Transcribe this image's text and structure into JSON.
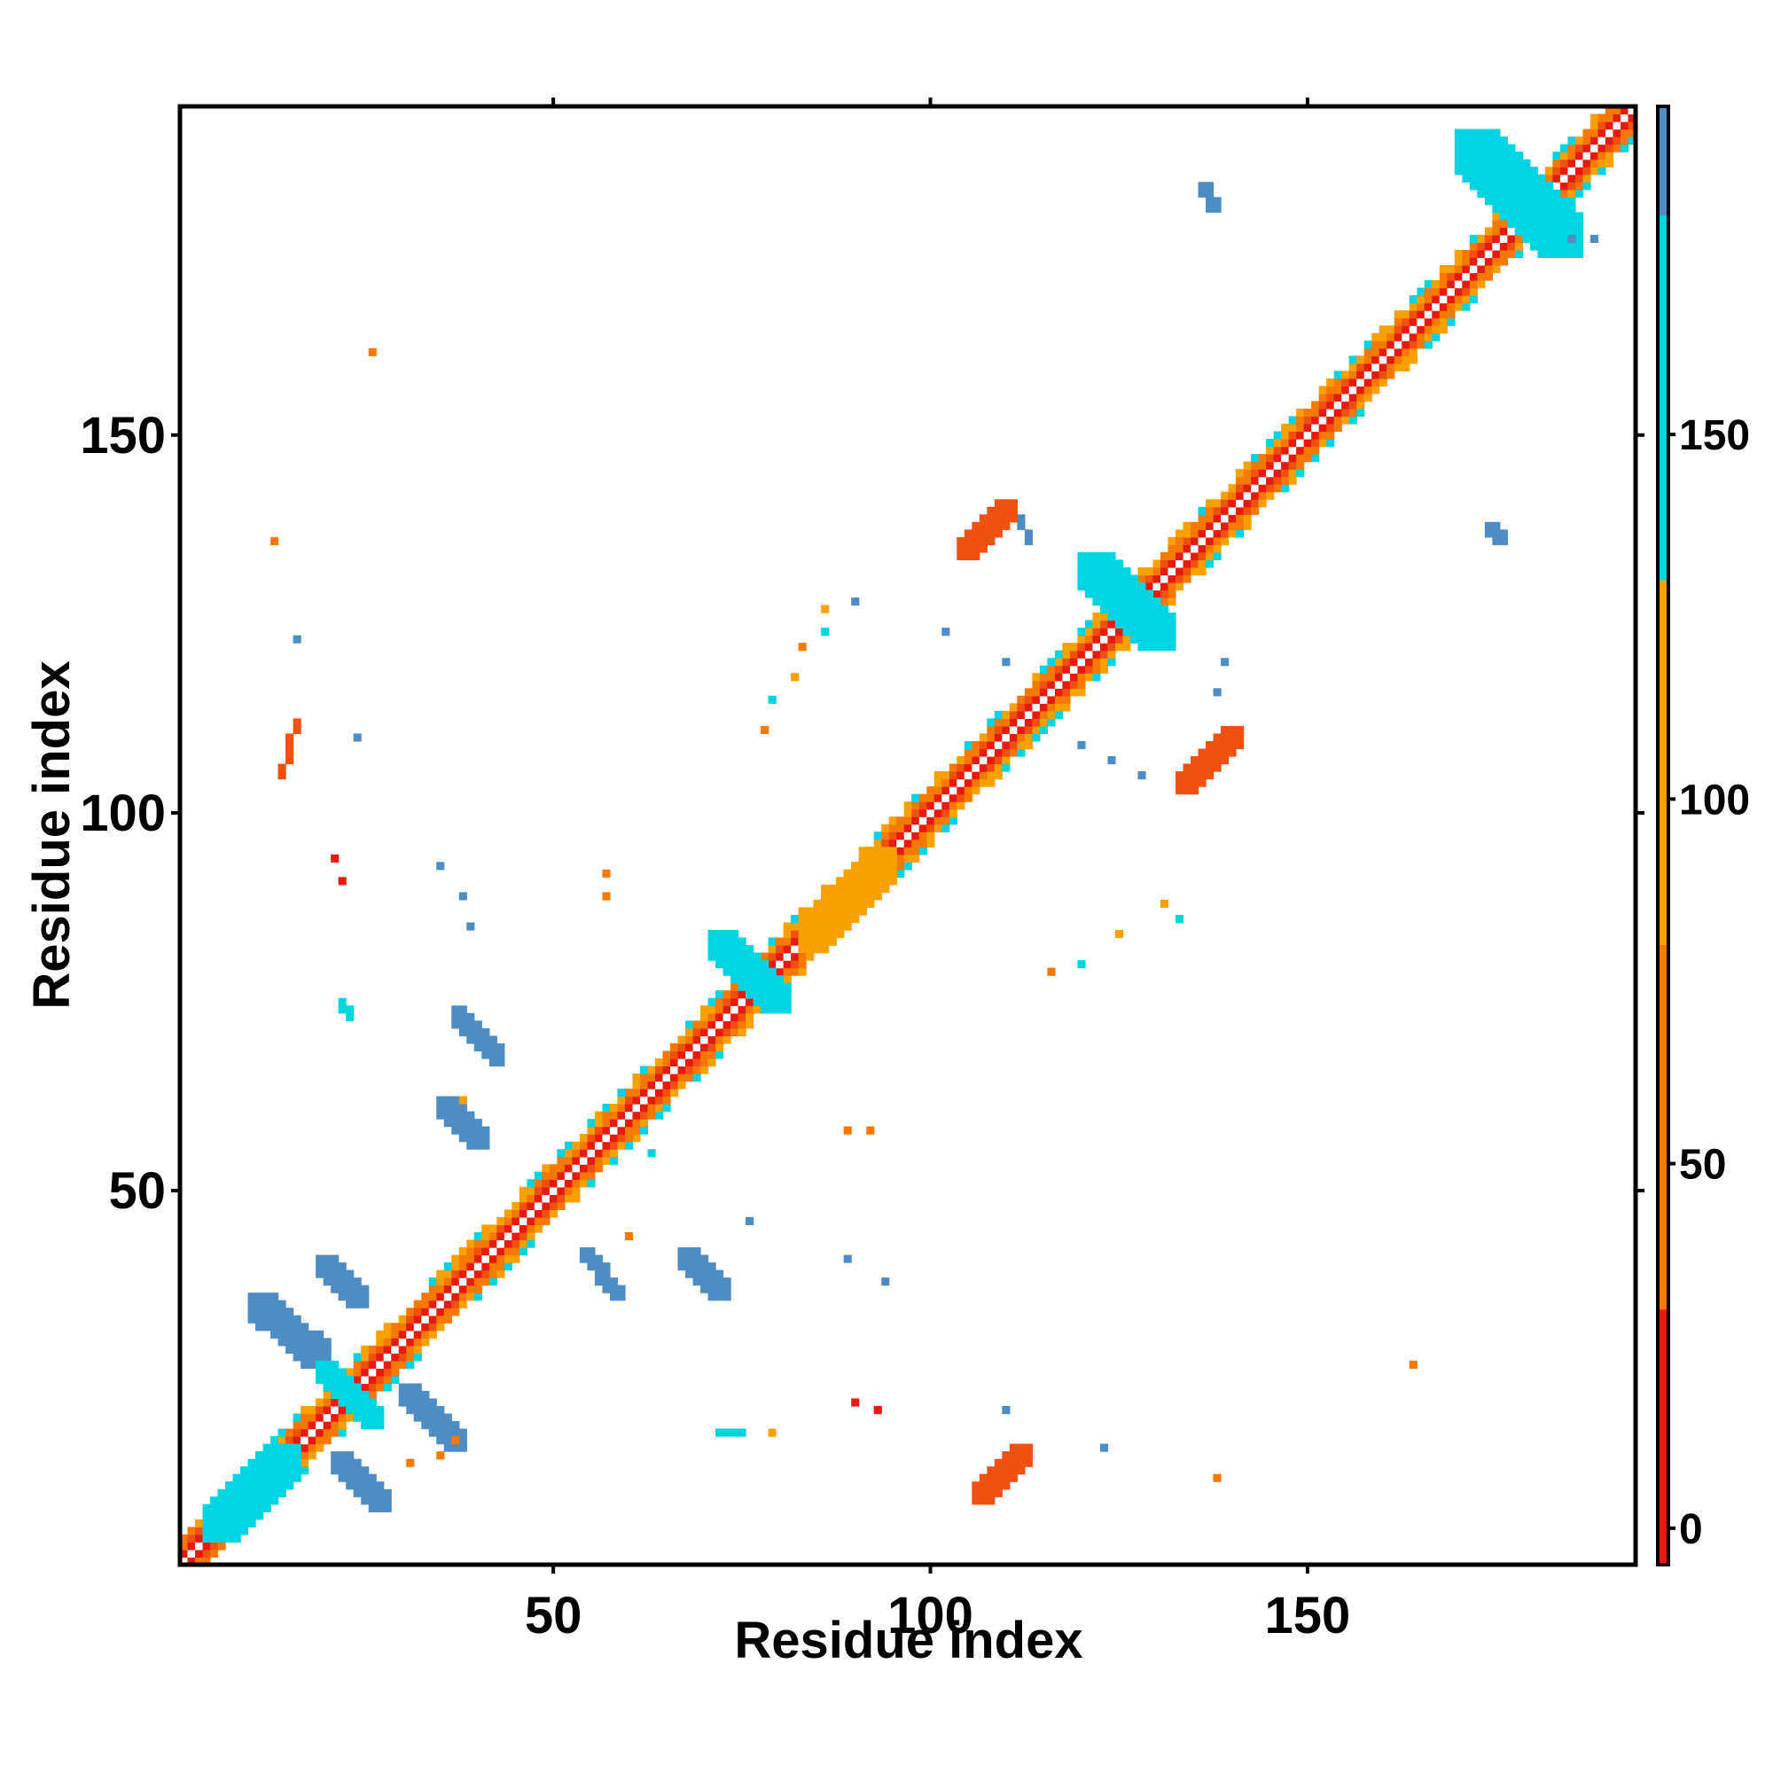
{
  "chart_data": {
    "type": "heatmap",
    "title": "",
    "xlabel": "Residue index",
    "ylabel": "Residue index",
    "xlim": [
      1,
      193
    ],
    "ylim": [
      1,
      193
    ],
    "x_ticks": [
      50,
      100,
      150
    ],
    "y_ticks": [
      50,
      100,
      150
    ],
    "grid": false,
    "legend_position": "right",
    "colorbar": {
      "ticks": [
        0,
        50,
        100,
        150
      ],
      "range": [
        -5,
        195
      ],
      "bins": [
        {
          "from": -5,
          "to": 30,
          "color": "#e8190e"
        },
        {
          "from": 30,
          "to": 80,
          "color": "#f57800"
        },
        {
          "from": 80,
          "to": 130,
          "color": "#f7a000"
        },
        {
          "from": 130,
          "to": 180,
          "color": "#00d4e0"
        },
        {
          "from": 180,
          "to": 195,
          "color": "#4d8dc4"
        }
      ]
    },
    "colors": {
      "red": "#e8190e",
      "redorange": "#f05010",
      "orange": "#f57800",
      "amber": "#f7a000",
      "cyan": "#00d4e0",
      "steel": "#4d8dc4"
    },
    "diagonal_range": [
      1,
      193
    ],
    "blobs": [
      {
        "x": [
          4,
          16
        ],
        "y": [
          4,
          16
        ],
        "color": "cyan",
        "note": "diag-band"
      },
      {
        "x": [
          10,
          20
        ],
        "y": [
          27,
          36
        ],
        "color": "steel"
      },
      {
        "x": [
          19,
          27
        ],
        "y": [
          19,
          27
        ],
        "color": "cyan"
      },
      {
        "x": [
          21,
          28
        ],
        "y": [
          8,
          15
        ],
        "color": "steel"
      },
      {
        "x": [
          30,
          38
        ],
        "y": [
          16,
          24
        ],
        "color": "steel"
      },
      {
        "x": [
          19,
          25
        ],
        "y": [
          35,
          41
        ],
        "color": "steel"
      },
      {
        "x": [
          35,
          41
        ],
        "y": [
          56,
          62
        ],
        "color": "steel"
      },
      {
        "x": [
          37,
          43
        ],
        "y": [
          67,
          74
        ],
        "color": "steel"
      },
      {
        "x": [
          54,
          59
        ],
        "y": [
          36,
          42
        ],
        "color": "steel"
      },
      {
        "x": [
          67,
          73
        ],
        "y": [
          36,
          42
        ],
        "color": "steel"
      },
      {
        "x": [
          71,
          81
        ],
        "y": [
          74,
          84
        ],
        "color": "cyan"
      },
      {
        "x": [
          83,
          95
        ],
        "y": [
          82,
          95
        ],
        "color": "amber"
      },
      {
        "x": [
          120,
          132
        ],
        "y": [
          122,
          134
        ],
        "color": "cyan"
      },
      {
        "x": [
          170,
          186
        ],
        "y": [
          174,
          190
        ],
        "color": "cyan"
      },
      {
        "x": [
          112,
          113
        ],
        "y": [
          136,
          139
        ],
        "color": "steel"
      },
      {
        "x": [
          136,
          138
        ],
        "y": [
          180,
          183
        ],
        "color": "steel"
      },
      {
        "x": [
          174,
          176
        ],
        "y": [
          136,
          138
        ],
        "color": "steel"
      },
      {
        "x": [
          14,
          16
        ],
        "y": [
          105,
          112
        ],
        "color": "redorange"
      },
      {
        "x": [
          104,
          111
        ],
        "y": [
          134,
          141
        ],
        "color": "redorange"
      },
      {
        "x": [
          106,
          113
        ],
        "y": [
          9,
          16
        ],
        "color": "redorange"
      },
      {
        "x": [
          133,
          141
        ],
        "y": [
          103,
          111
        ],
        "color": "redorange"
      },
      {
        "x": [
          72,
          75
        ],
        "y": [
          18,
          18
        ],
        "color": "cyan"
      },
      {
        "x": [
          22,
          23
        ],
        "y": [
          73,
          75
        ],
        "color": "cyan"
      }
    ],
    "specks": [
      {
        "x": 26,
        "y": 161,
        "color": "orange"
      },
      {
        "x": 13,
        "y": 136,
        "color": "orange"
      },
      {
        "x": 16,
        "y": 123,
        "color": "steel"
      },
      {
        "x": 24,
        "y": 110,
        "color": "steel"
      },
      {
        "x": 21,
        "y": 94,
        "color": "red"
      },
      {
        "x": 22,
        "y": 91,
        "color": "red"
      },
      {
        "x": 35,
        "y": 93,
        "color": "steel"
      },
      {
        "x": 38,
        "y": 89,
        "color": "steel"
      },
      {
        "x": 39,
        "y": 85,
        "color": "steel"
      },
      {
        "x": 57,
        "y": 92,
        "color": "orange"
      },
      {
        "x": 57,
        "y": 89,
        "color": "orange"
      },
      {
        "x": 78,
        "y": 111,
        "color": "orange"
      },
      {
        "x": 79,
        "y": 115,
        "color": "cyan"
      },
      {
        "x": 82,
        "y": 118,
        "color": "amber"
      },
      {
        "x": 83,
        "y": 122,
        "color": "orange"
      },
      {
        "x": 86,
        "y": 124,
        "color": "cyan"
      },
      {
        "x": 86,
        "y": 127,
        "color": "amber"
      },
      {
        "x": 90,
        "y": 128,
        "color": "steel"
      },
      {
        "x": 102,
        "y": 124,
        "color": "steel"
      },
      {
        "x": 110,
        "y": 120,
        "color": "steel"
      },
      {
        "x": 120,
        "y": 109,
        "color": "steel"
      },
      {
        "x": 124,
        "y": 107,
        "color": "steel"
      },
      {
        "x": 128,
        "y": 105,
        "color": "steel"
      },
      {
        "x": 139,
        "y": 120,
        "color": "steel"
      },
      {
        "x": 138,
        "y": 116,
        "color": "steel"
      },
      {
        "x": 131,
        "y": 88,
        "color": "amber"
      },
      {
        "x": 133,
        "y": 86,
        "color": "cyan"
      },
      {
        "x": 125,
        "y": 84,
        "color": "amber"
      },
      {
        "x": 120,
        "y": 80,
        "color": "cyan"
      },
      {
        "x": 116,
        "y": 79,
        "color": "orange"
      },
      {
        "x": 89,
        "y": 58,
        "color": "orange"
      },
      {
        "x": 92,
        "y": 58,
        "color": "orange"
      },
      {
        "x": 63,
        "y": 55,
        "color": "cyan"
      },
      {
        "x": 60,
        "y": 44,
        "color": "orange"
      },
      {
        "x": 76,
        "y": 46,
        "color": "steel"
      },
      {
        "x": 89,
        "y": 41,
        "color": "steel"
      },
      {
        "x": 94,
        "y": 38,
        "color": "steel"
      },
      {
        "x": 90,
        "y": 22,
        "color": "red"
      },
      {
        "x": 93,
        "y": 21,
        "color": "red"
      },
      {
        "x": 110,
        "y": 21,
        "color": "steel"
      },
      {
        "x": 123,
        "y": 16,
        "color": "steel"
      },
      {
        "x": 138,
        "y": 12,
        "color": "orange"
      },
      {
        "x": 164,
        "y": 27,
        "color": "orange"
      },
      {
        "x": 79,
        "y": 18,
        "color": "amber"
      },
      {
        "x": 31,
        "y": 14,
        "color": "orange"
      },
      {
        "x": 35,
        "y": 15,
        "color": "orange"
      },
      {
        "x": 37,
        "y": 17,
        "color": "orange"
      },
      {
        "x": 38,
        "y": 62,
        "color": "amber"
      },
      {
        "x": 188,
        "y": 176,
        "color": "steel"
      },
      {
        "x": 185,
        "y": 176,
        "color": "steel"
      },
      {
        "x": 174,
        "y": 188,
        "color": "cyan"
      }
    ]
  }
}
